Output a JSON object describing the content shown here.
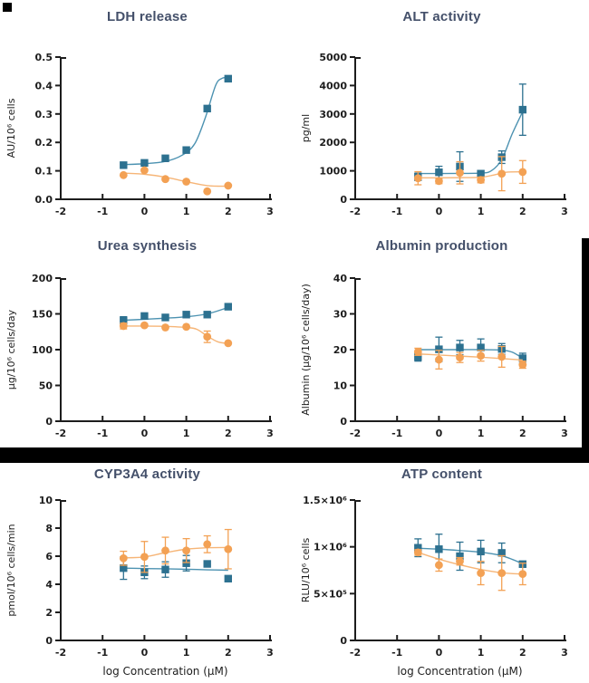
{
  "page": {
    "background": "#ffffff"
  },
  "colors": {
    "title": "#44506a",
    "axis": "#1d1d1d",
    "divider": "#000000",
    "teal": "#2d7190",
    "teal_line": "#4c92b1",
    "orange": "#f3a154",
    "orange_line": "#f6b577"
  },
  "chart_data": [
    {
      "type": "scatter",
      "title": "LDH release",
      "ylabel": "AU/10⁶ cells",
      "xlabel": "",
      "xlim": [
        -2,
        3
      ],
      "ylim": [
        0,
        0.5
      ],
      "xtick_values": [
        -2,
        -1,
        0,
        1,
        2,
        3
      ],
      "xtick_labels": [
        "-2",
        "-1",
        "0",
        "1",
        "2",
        "3"
      ],
      "ytick_values": [
        0,
        0.1,
        0.2,
        0.3,
        0.4,
        0.5
      ],
      "ytick_labels": [
        "0.0",
        "0.1",
        "0.2",
        "0.3",
        "0.4",
        "0.5"
      ],
      "x": [
        -0.5,
        0,
        0.5,
        1,
        1.5,
        2
      ],
      "series": [
        {
          "name": "squares",
          "marker": "square",
          "color": "#2d7190",
          "line_color": "#4c92b1",
          "values": [
            0.12,
            0.128,
            0.144,
            0.173,
            0.319,
            0.424
          ],
          "errors": [
            0,
            0,
            0,
            0,
            0,
            0
          ],
          "curve_x": [
            -0.5,
            0,
            0.5,
            0.9,
            1.2,
            1.45,
            1.7,
            1.85,
            2
          ],
          "curve_y": [
            0.122,
            0.125,
            0.133,
            0.155,
            0.195,
            0.285,
            0.4,
            0.425,
            0.428
          ]
        },
        {
          "name": "circles",
          "marker": "circle",
          "color": "#f3a154",
          "line_color": "#f6b577",
          "values": [
            0.085,
            0.102,
            0.071,
            0.062,
            0.028,
            0.048
          ],
          "errors": [
            0,
            0,
            0,
            0,
            0,
            0
          ],
          "curve_x": [
            -0.5,
            0,
            0.5,
            1,
            1.5,
            2
          ],
          "curve_y": [
            0.092,
            0.088,
            0.078,
            0.062,
            0.048,
            0.046
          ]
        }
      ]
    },
    {
      "type": "scatter",
      "title": "ALT activity",
      "ylabel": "pg/ml",
      "xlabel": "",
      "xlim": [
        -2,
        3
      ],
      "ylim": [
        0,
        5000
      ],
      "xtick_values": [
        -2,
        -1,
        0,
        1,
        2,
        3
      ],
      "xtick_labels": [
        "-2",
        "-1",
        "0",
        "1",
        "2",
        "3"
      ],
      "ytick_values": [
        0,
        1000,
        2000,
        3000,
        4000,
        5000
      ],
      "ytick_labels": [
        "0",
        "1000",
        "2000",
        "3000",
        "4000",
        "5000"
      ],
      "x": [
        -0.5,
        0,
        0.5,
        1,
        1.5,
        2
      ],
      "series": [
        {
          "name": "squares",
          "marker": "square",
          "color": "#2d7190",
          "line_color": "#4c92b1",
          "values": [
            790,
            950,
            1150,
            900,
            1480,
            3150
          ],
          "errors": [
            130,
            210,
            520,
            110,
            220,
            900
          ],
          "curve_x": [
            -0.5,
            0,
            0.5,
            1,
            1.25,
            1.5,
            1.75,
            2
          ],
          "curve_y": [
            905,
            905,
            910,
            920,
            1000,
            1400,
            2300,
            3080
          ]
        },
        {
          "name": "circles",
          "marker": "circle",
          "color": "#f3a154",
          "line_color": "#f6b577",
          "values": [
            740,
            640,
            930,
            680,
            900,
            960
          ],
          "errors": [
            230,
            90,
            390,
            100,
            600,
            400
          ],
          "curve_x": [
            -0.5,
            0,
            0.5,
            1,
            1.3,
            1.6,
            2
          ],
          "curve_y": [
            755,
            755,
            760,
            775,
            850,
            950,
            965
          ]
        }
      ]
    },
    {
      "type": "scatter",
      "title": "Urea synthesis",
      "ylabel": "µg/10⁶ cells/day",
      "xlabel": "",
      "xlim": [
        -2,
        3
      ],
      "ylim": [
        0,
        200
      ],
      "xtick_values": [
        -2,
        -1,
        0,
        1,
        2,
        3
      ],
      "xtick_labels": [
        "-2",
        "-1",
        "0",
        "1",
        "2",
        "3"
      ],
      "ytick_values": [
        0,
        50,
        100,
        150,
        200
      ],
      "ytick_labels": [
        "0",
        "50",
        "100",
        "150",
        "200"
      ],
      "x": [
        -0.5,
        0,
        0.5,
        1,
        1.5,
        2
      ],
      "series": [
        {
          "name": "squares",
          "marker": "square",
          "color": "#2d7190",
          "line_color": "#4c92b1",
          "values": [
            141,
            147,
            145,
            149,
            149,
            160
          ],
          "errors": [
            5,
            0,
            0,
            0,
            0,
            0
          ],
          "curve_x": [
            -0.5,
            0,
            0.5,
            1,
            1.5,
            2
          ],
          "curve_y": [
            141,
            142.5,
            144,
            146,
            150,
            159
          ]
        },
        {
          "name": "circles",
          "marker": "circle",
          "color": "#f3a154",
          "line_color": "#f6b577",
          "values": [
            133,
            134,
            131,
            132,
            118,
            109
          ],
          "errors": [
            4,
            0,
            0,
            0,
            8,
            0
          ],
          "curve_x": [
            -0.5,
            0,
            0.5,
            1,
            1.25,
            1.5,
            1.75,
            2
          ],
          "curve_y": [
            133,
            133,
            132.5,
            131,
            128.5,
            119,
            111,
            108.5
          ]
        }
      ]
    },
    {
      "type": "scatter",
      "title": "Albumin production",
      "ylabel": "Albumin (µg/10⁶ cells/day)",
      "xlabel": "",
      "xlim": [
        -2,
        3
      ],
      "ylim": [
        0,
        40
      ],
      "xtick_values": [
        -2,
        -1,
        0,
        1,
        2,
        3
      ],
      "xtick_labels": [
        "-2",
        "-1",
        "0",
        "1",
        "2",
        "3"
      ],
      "ytick_values": [
        0,
        10,
        20,
        30,
        40
      ],
      "ytick_labels": [
        "0",
        "10",
        "20",
        "30",
        "40"
      ],
      "x": [
        -0.5,
        0,
        0.5,
        1,
        1.5,
        2
      ],
      "series": [
        {
          "name": "squares",
          "marker": "square",
          "color": "#2d7190",
          "line_color": "#4c92b1",
          "values": [
            18,
            20.1,
            20.6,
            20.6,
            20.2,
            17.6
          ],
          "errors": [
            1.2,
            3.4,
            2,
            2.4,
            1.5,
            1.4
          ],
          "curve_x": [
            -0.5,
            0,
            0.5,
            1,
            1.5,
            1.75,
            2
          ],
          "curve_y": [
            20,
            20,
            20,
            20,
            19.9,
            19.3,
            17.6
          ]
        },
        {
          "name": "circles",
          "marker": "circle",
          "color": "#f3a154",
          "line_color": "#f6b577",
          "values": [
            19.4,
            17.2,
            17.8,
            18.3,
            18,
            15.8
          ],
          "errors": [
            1,
            2.6,
            1.4,
            1.5,
            2.9,
            1
          ],
          "curve_x": [
            -0.5,
            0,
            0.5,
            1,
            1.5,
            2
          ],
          "curve_y": [
            18.8,
            18.5,
            18.2,
            17.9,
            17.5,
            17.1
          ]
        }
      ]
    },
    {
      "type": "scatter",
      "title": "CYP3A4 activity",
      "ylabel": "pmol/10⁶ cells/min",
      "xlabel": "log Concentration (µM)",
      "xlim": [
        -2,
        3
      ],
      "ylim": [
        0,
        10
      ],
      "xtick_values": [
        -2,
        -1,
        0,
        1,
        2,
        3
      ],
      "xtick_labels": [
        "-2",
        "-1",
        "0",
        "1",
        "2",
        "3"
      ],
      "ytick_values": [
        0,
        2,
        4,
        6,
        8,
        10
      ],
      "ytick_labels": [
        "0",
        "2",
        "4",
        "6",
        "8",
        "10"
      ],
      "x": [
        -0.5,
        0,
        0.5,
        1,
        1.5,
        2
      ],
      "series": [
        {
          "name": "squares",
          "marker": "square",
          "color": "#2d7190",
          "line_color": "#4c92b1",
          "values": [
            5.15,
            4.85,
            5.05,
            5.5,
            5.45,
            4.4
          ],
          "errors": [
            0.8,
            0.45,
            0.55,
            0.55,
            0,
            0
          ],
          "curve_x": [
            -0.5,
            0,
            0.5,
            1,
            1.5,
            2
          ],
          "curve_y": [
            5.15,
            5.12,
            5.1,
            5.07,
            5.03,
            5.0
          ]
        },
        {
          "name": "circles",
          "marker": "circle",
          "color": "#f3a154",
          "line_color": "#f6b577",
          "values": [
            5.85,
            5.95,
            6.4,
            6.4,
            6.85,
            6.5
          ],
          "errors": [
            0.5,
            1.1,
            0.95,
            0.85,
            0.6,
            1.4
          ],
          "curve_x": [
            -0.5,
            0,
            0.5,
            1,
            1.5,
            2
          ],
          "curve_y": [
            5.88,
            5.95,
            6.25,
            6.5,
            6.6,
            6.62
          ]
        }
      ]
    },
    {
      "type": "scatter",
      "title": "ATP content",
      "ylabel": "RLU/10⁶ cells",
      "xlabel": "log Concentration (µM)",
      "xlim": [
        -2,
        3
      ],
      "ylim": [
        0,
        1500000
      ],
      "xtick_values": [
        -2,
        -1,
        0,
        1,
        2,
        3
      ],
      "xtick_labels": [
        "-2",
        "-1",
        "0",
        "1",
        "2",
        "3"
      ],
      "ytick_values": [
        0,
        500000,
        1000000,
        1500000
      ],
      "ytick_labels": [
        "0",
        "5×10⁵",
        "1×10⁶",
        "1.5×10⁶"
      ],
      "x": [
        -0.5,
        0,
        0.5,
        1,
        1.5,
        2
      ],
      "series": [
        {
          "name": "squares",
          "marker": "square",
          "color": "#2d7190",
          "line_color": "#4c92b1",
          "values": [
            990000,
            975000,
            900000,
            950000,
            935000,
            815000
          ],
          "errors": [
            95000,
            160000,
            150000,
            120000,
            105000,
            30000
          ],
          "curve_x": [
            -0.5,
            0,
            0.5,
            1,
            1.5,
            2
          ],
          "curve_y": [
            985000,
            975000,
            960000,
            942000,
            905000,
            820000
          ]
        },
        {
          "name": "circles",
          "marker": "circle",
          "color": "#f3a154",
          "line_color": "#f6b577",
          "values": [
            940000,
            805000,
            845000,
            720000,
            720000,
            710000
          ],
          "errors": [
            30000,
            65000,
            40000,
            125000,
            185000,
            115000
          ],
          "curve_x": [
            -0.5,
            0,
            0.5,
            1,
            1.5,
            2
          ],
          "curve_y": [
            940000,
            868000,
            808000,
            758000,
            723000,
            708000
          ]
        }
      ]
    }
  ]
}
